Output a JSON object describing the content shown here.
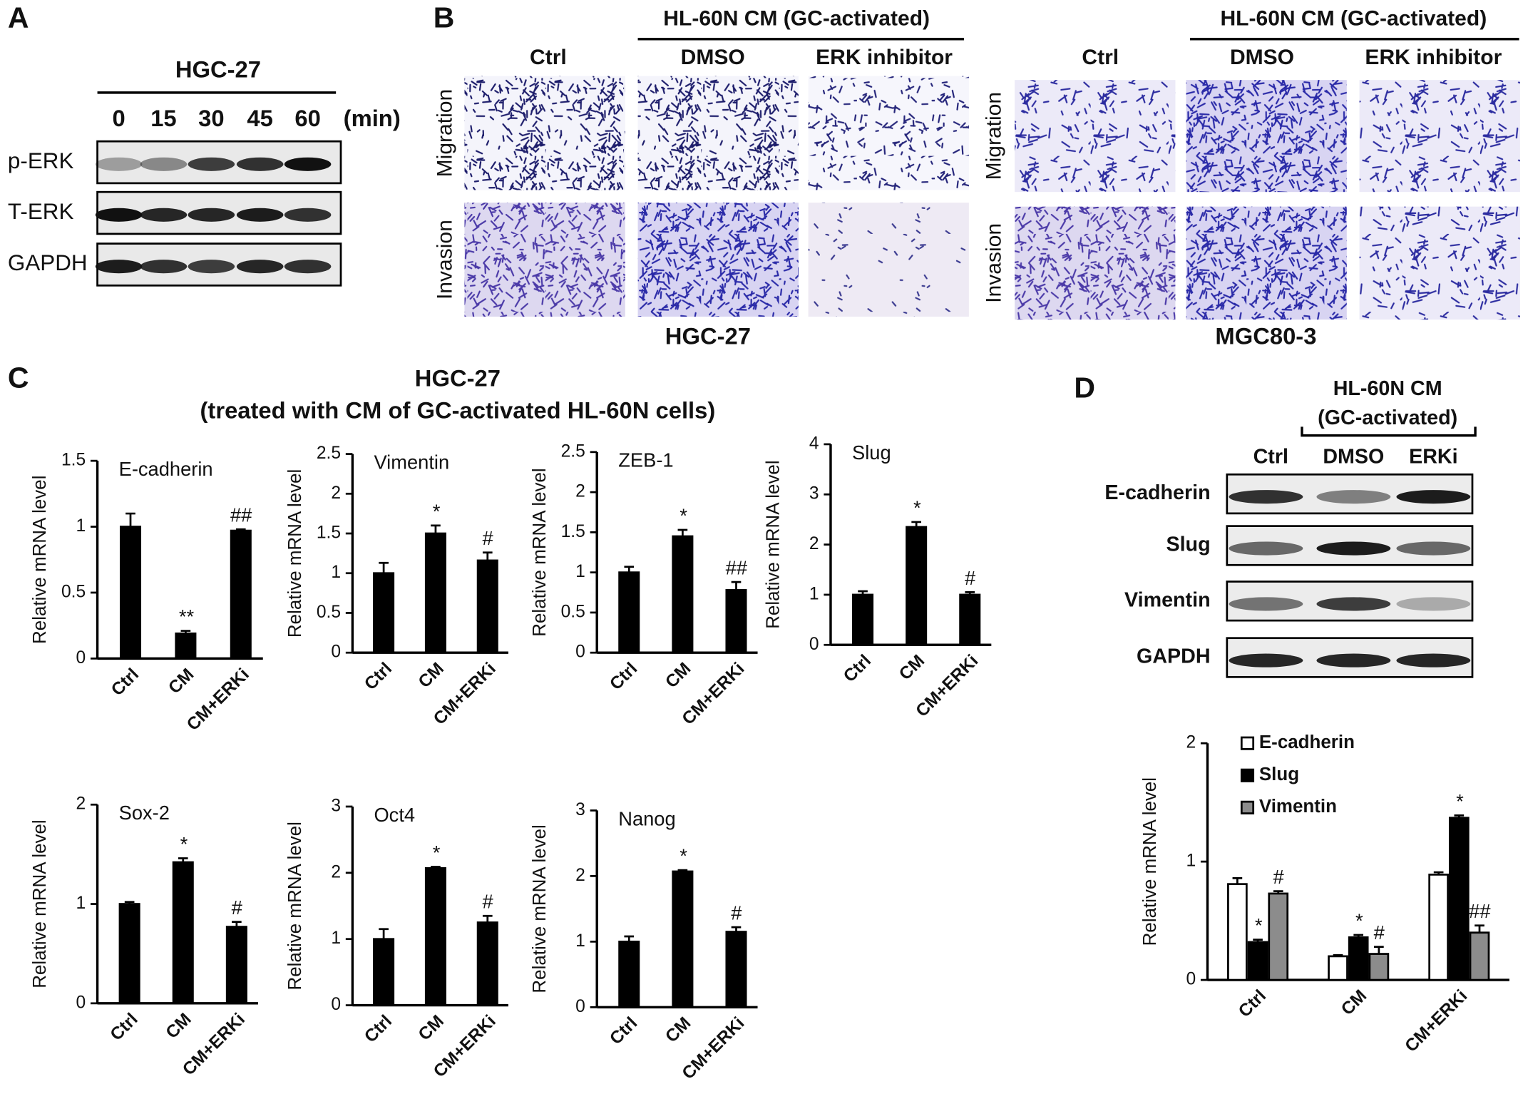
{
  "panel_a": {
    "label": "A",
    "cell_line": "HGC-27",
    "time_points": [
      "0",
      "15",
      "30",
      "45",
      "60"
    ],
    "time_unit": "(min)",
    "rows": [
      "p-ERK",
      "T-ERK",
      "GAPDH"
    ]
  },
  "panel_b": {
    "label": "B",
    "sets": [
      {
        "cell_line": "HGC-27",
        "group_header": "HL-60N CM (GC-activated)",
        "columns": [
          "Ctrl",
          "DMSO",
          "ERK inhibitor"
        ],
        "rows": [
          "Migration",
          "Invasion"
        ]
      },
      {
        "cell_line": "MGC80-3",
        "group_header": "HL-60N CM (GC-activated)",
        "columns": [
          "Ctrl",
          "DMSO",
          "ERK inhibitor"
        ],
        "rows": [
          "Migration",
          "Invasion"
        ]
      }
    ]
  },
  "panel_c": {
    "label": "C",
    "title": "HGC-27",
    "subtitle": "(treated with CM of GC-activated HL-60N cells)"
  },
  "panel_d": {
    "label": "D",
    "group_header": [
      "HL-60N CM",
      "(GC-activated)"
    ],
    "columns": [
      "Ctrl",
      "DMSO",
      "ERKi"
    ],
    "rows": [
      "E-cadherin",
      "Slug",
      "Vimentin",
      "GAPDH"
    ]
  },
  "chart_data": [
    {
      "type": "bar",
      "title": "E-cadherin",
      "ylabel": "Relative mRNA level",
      "categories": [
        "Ctrl",
        "CM",
        "CM+ERKi"
      ],
      "values": [
        1.0,
        0.19,
        0.97
      ],
      "errors": [
        0.1,
        0.02,
        0.01
      ],
      "annotations": [
        null,
        "**",
        "##"
      ],
      "color": "#000000",
      "ylim": [
        0,
        1.5
      ],
      "yticks": [
        0,
        0.5,
        1,
        1.5
      ]
    },
    {
      "type": "bar",
      "title": "Vimentin",
      "ylabel": "Relative mRNA level",
      "categories": [
        "Ctrl",
        "CM",
        "CM+ERKi"
      ],
      "values": [
        1.0,
        1.5,
        1.16
      ],
      "errors": [
        0.13,
        0.1,
        0.1
      ],
      "annotations": [
        null,
        "*",
        "#"
      ],
      "color": "#000000",
      "ylim": [
        0,
        2.5
      ],
      "yticks": [
        0,
        0.5,
        1,
        1.5,
        2,
        2.5
      ]
    },
    {
      "type": "bar",
      "title": "ZEB-1",
      "ylabel": "Relative mRNA level",
      "categories": [
        "Ctrl",
        "CM",
        "CM+ERKi"
      ],
      "values": [
        1.0,
        1.45,
        0.78
      ],
      "errors": [
        0.07,
        0.08,
        0.1
      ],
      "annotations": [
        null,
        "*",
        "##"
      ],
      "color": "#000000",
      "ylim": [
        0,
        2.5
      ],
      "yticks": [
        0,
        0.5,
        1,
        1.5,
        2,
        2.5
      ]
    },
    {
      "type": "bar",
      "title": "Slug",
      "ylabel": "Relative mRNA level",
      "categories": [
        "Ctrl",
        "CM",
        "CM+ERKi"
      ],
      "values": [
        1.0,
        2.35,
        1.0
      ],
      "errors": [
        0.07,
        0.1,
        0.05
      ],
      "annotations": [
        null,
        "*",
        "#"
      ],
      "color": "#000000",
      "ylim": [
        0,
        4
      ],
      "yticks": [
        0,
        1,
        2,
        3,
        4
      ]
    },
    {
      "type": "bar",
      "title": "Sox-2",
      "ylabel": "Relative mRNA level",
      "categories": [
        "Ctrl",
        "CM",
        "CM+ERKi"
      ],
      "values": [
        1.0,
        1.42,
        0.77
      ],
      "errors": [
        0.02,
        0.04,
        0.05
      ],
      "annotations": [
        null,
        "*",
        "#"
      ],
      "color": "#000000",
      "ylim": [
        0,
        2
      ],
      "yticks": [
        0,
        1,
        2
      ]
    },
    {
      "type": "bar",
      "title": "Oct4",
      "ylabel": "Relative mRNA level",
      "categories": [
        "Ctrl",
        "CM",
        "CM+ERKi"
      ],
      "values": [
        1.0,
        2.07,
        1.25
      ],
      "errors": [
        0.15,
        0.02,
        0.1
      ],
      "annotations": [
        null,
        "*",
        "#"
      ],
      "color": "#000000",
      "ylim": [
        0,
        3
      ],
      "yticks": [
        0,
        1,
        2,
        3
      ]
    },
    {
      "type": "bar",
      "title": "Nanog",
      "ylabel": "Relative mRNA level",
      "categories": [
        "Ctrl",
        "CM",
        "CM+ERKi"
      ],
      "values": [
        1.0,
        2.07,
        1.15
      ],
      "errors": [
        0.08,
        0.02,
        0.07
      ],
      "annotations": [
        null,
        "*",
        "#"
      ],
      "color": "#000000",
      "ylim": [
        0,
        3
      ],
      "yticks": [
        0,
        1,
        2,
        3
      ]
    },
    {
      "type": "grouped_bar",
      "ylabel": "Relative mRNA level",
      "categories": [
        "Ctrl",
        "CM",
        "CM+ERKi"
      ],
      "legend": "upper left",
      "edgecolor": "#000000",
      "ylim": [
        0,
        2
      ],
      "yticks": [
        0,
        1,
        2
      ],
      "series": [
        {
          "name": "E-cadherin",
          "color": "#ffffff",
          "values": [
            0.81,
            0.2,
            0.89
          ],
          "errors": [
            0.05,
            0.01,
            0.02
          ],
          "annotations": [
            null,
            null,
            null
          ]
        },
        {
          "name": "Slug",
          "color": "#000000",
          "values": [
            0.32,
            0.36,
            1.37
          ],
          "errors": [
            0.02,
            0.02,
            0.02
          ],
          "annotations": [
            "*",
            "*",
            "*"
          ]
        },
        {
          "name": "Vimentin",
          "color": "#8c8c8c",
          "values": [
            0.73,
            0.22,
            0.4
          ],
          "errors": [
            0.02,
            0.06,
            0.06
          ],
          "annotations": [
            "#",
            "#",
            "##"
          ]
        }
      ]
    }
  ]
}
